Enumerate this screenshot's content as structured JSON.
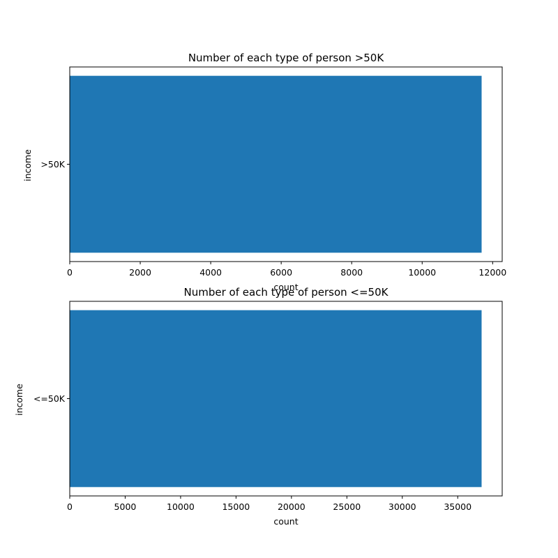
{
  "chart_data": [
    {
      "type": "bar",
      "orientation": "horizontal",
      "title": "Number of each type of person >50K",
      "xlabel": "count",
      "ylabel": "income",
      "categories": [
        ">50K"
      ],
      "values": [
        11687
      ],
      "xlim": [
        0,
        12271
      ],
      "xticks": [
        0,
        2000,
        4000,
        6000,
        8000,
        10000,
        12000
      ],
      "grid": false,
      "color": "#1f77b4"
    },
    {
      "type": "bar",
      "orientation": "horizontal",
      "title": "Number of each type of person <=50K",
      "xlabel": "count",
      "ylabel": "income",
      "categories": [
        "<=50K"
      ],
      "values": [
        37155
      ],
      "xlim": [
        0,
        39013
      ],
      "xticks": [
        0,
        5000,
        10000,
        15000,
        20000,
        25000,
        30000,
        35000
      ],
      "grid": false,
      "color": "#1f77b4"
    }
  ]
}
